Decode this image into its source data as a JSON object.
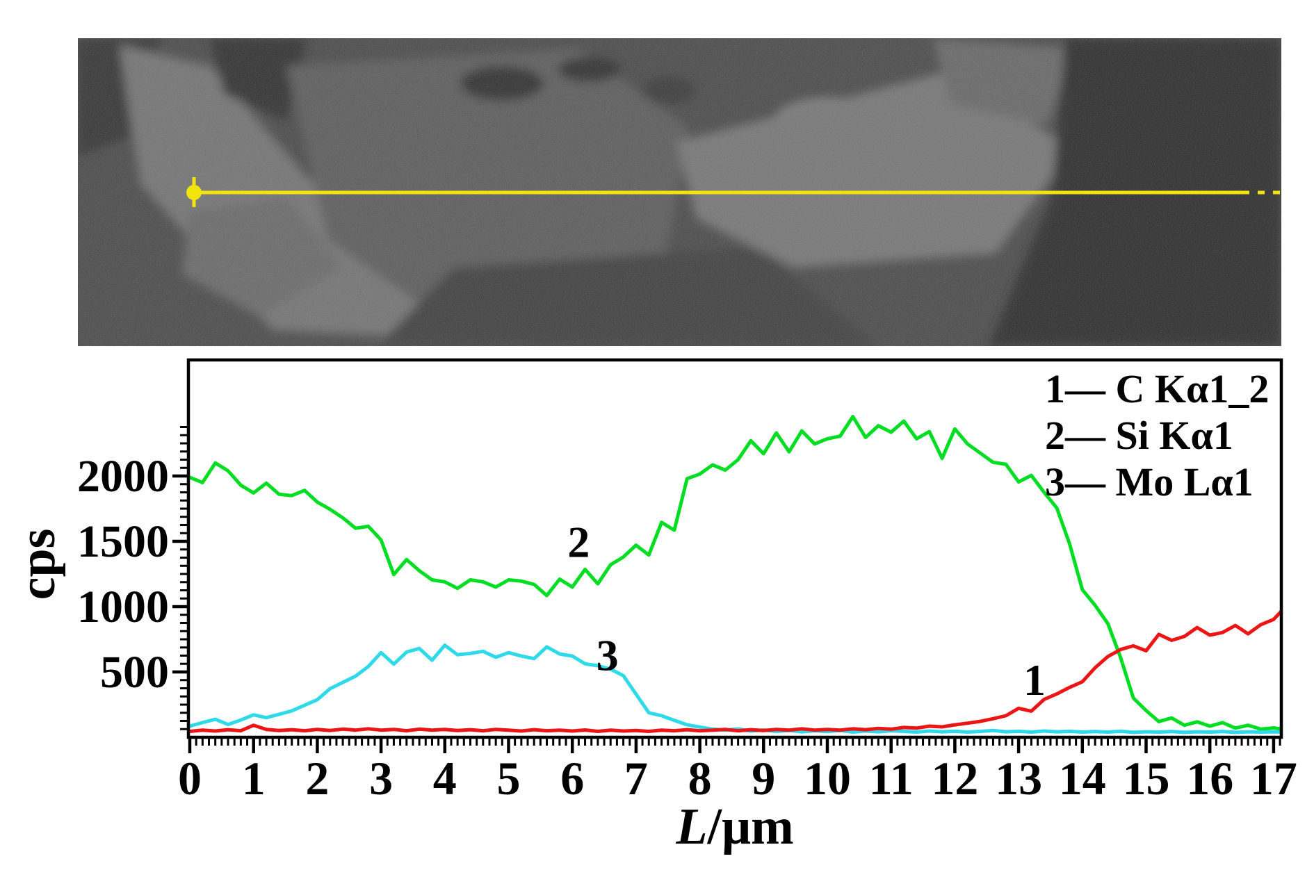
{
  "sem_panel": {
    "description": "SEM micrograph with horizontal EDS line-scan marker",
    "scan_line_color": "#f2e30a"
  },
  "chart": {
    "ylabel": "cps",
    "xlabel_var": "L",
    "xlabel_rest": "/μm",
    "legend": [
      {
        "text": "1— C Kα1_2"
      },
      {
        "text": "2— Si Kα1"
      },
      {
        "text": "3— Mo Lα1"
      }
    ]
  },
  "chart_data": {
    "type": "line",
    "title": "",
    "xlabel": "L/μm",
    "ylabel": "cps",
    "xlim": [
      0,
      17.12
    ],
    "ylim": [
      0,
      2888
    ],
    "grid": false,
    "legend_position": "top-right-inside",
    "x_start": 0,
    "x_step": 0.2,
    "x_ticks": [
      0,
      1,
      2,
      3,
      4,
      5,
      6,
      7,
      8,
      9,
      10,
      11,
      12,
      13,
      14,
      15,
      16,
      17
    ],
    "y_ticks": [
      500,
      1000,
      1500,
      2000
    ],
    "x_minor_step": 0.1,
    "y_minor_step": 62.5,
    "draw_order": [
      1,
      2,
      0
    ],
    "series": [
      {
        "name": "C Ka1_2",
        "number": 1,
        "color": "#ec1515",
        "values": [
          45,
          55,
          48,
          58,
          50,
          92,
          60,
          52,
          58,
          50,
          60,
          52,
          62,
          55,
          65,
          55,
          60,
          50,
          62,
          55,
          60,
          52,
          58,
          50,
          60,
          55,
          48,
          58,
          50,
          55,
          48,
          56,
          45,
          55,
          48,
          52,
          45,
          55,
          50,
          58,
          50,
          55,
          60,
          50,
          58,
          52,
          60,
          55,
          65,
          55,
          60,
          55,
          65,
          58,
          68,
          62,
          75,
          70,
          85,
          80,
          95,
          108,
          122,
          142,
          165,
          222,
          200,
          290,
          332,
          382,
          425,
          532,
          618,
          672,
          700,
          662,
          788,
          742,
          772,
          840,
          782,
          802,
          856,
          792,
          862,
          902,
          1005
        ]
      },
      {
        "name": "Si Ka1",
        "number": 2,
        "color": "#00dd22",
        "values": [
          1990,
          1950,
          2100,
          2040,
          1930,
          1870,
          1945,
          1860,
          1850,
          1890,
          1800,
          1745,
          1680,
          1600,
          1615,
          1510,
          1245,
          1360,
          1275,
          1205,
          1190,
          1140,
          1205,
          1190,
          1150,
          1205,
          1195,
          1170,
          1085,
          1210,
          1150,
          1285,
          1175,
          1320,
          1380,
          1470,
          1395,
          1645,
          1585,
          1980,
          2015,
          2085,
          2045,
          2125,
          2270,
          2170,
          2330,
          2185,
          2345,
          2245,
          2285,
          2305,
          2455,
          2295,
          2385,
          2335,
          2420,
          2285,
          2340,
          2135,
          2360,
          2245,
          2175,
          2105,
          2090,
          1955,
          2005,
          1875,
          1755,
          1480,
          1130,
          1010,
          870,
          610,
          300,
          205,
          120,
          148,
          92,
          118,
          85,
          112,
          70,
          92,
          62,
          72,
          58
        ]
      },
      {
        "name": "Mo La1",
        "number": 3,
        "color": "#2ed9ea",
        "values": [
          85,
          112,
          138,
          98,
          132,
          172,
          150,
          176,
          202,
          245,
          288,
          372,
          420,
          468,
          542,
          648,
          560,
          652,
          680,
          590,
          705,
          632,
          642,
          658,
          612,
          648,
          622,
          602,
          692,
          638,
          622,
          562,
          548,
          522,
          472,
          330,
          188,
          165,
          130,
          96,
          78,
          62,
          55,
          64,
          48,
          56,
          45,
          52,
          42,
          50,
          44,
          52,
          40,
          48,
          42,
          50,
          45,
          40,
          48,
          42,
          46,
          40,
          45,
          52,
          42,
          46,
          40,
          48,
          42,
          45,
          40,
          44,
          40,
          46,
          38,
          42,
          40,
          44,
          38,
          42,
          40,
          44,
          38,
          42,
          40,
          42,
          40
        ]
      }
    ],
    "annotations": [
      {
        "text": "2",
        "x": 6.1,
        "y": 1495
      },
      {
        "text": "3",
        "x": 6.55,
        "y": 628
      },
      {
        "text": "1",
        "x": 13.25,
        "y": 440
      }
    ]
  }
}
